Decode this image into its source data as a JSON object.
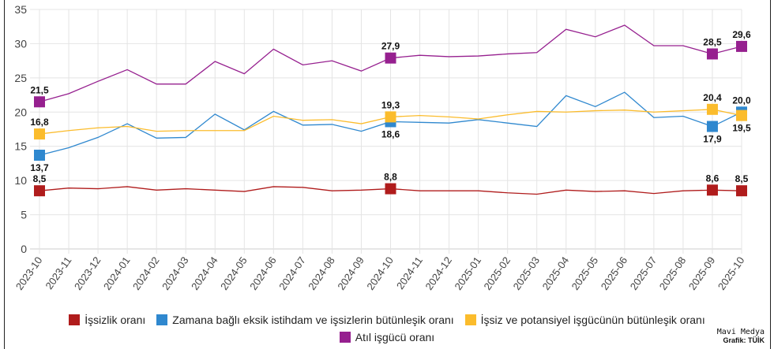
{
  "chart_data": {
    "type": "line",
    "categories": [
      "2023-10",
      "2023-11",
      "2023-12",
      "2024-01",
      "2024-02",
      "2024-03",
      "2024-04",
      "2024-05",
      "2024-06",
      "2024-07",
      "2024-08",
      "2024-09",
      "2024-10",
      "2024-11",
      "2024-12",
      "2025-01",
      "2025-02",
      "2025-03",
      "2025-04",
      "2025-05",
      "2025-06",
      "2025-07",
      "2025-08",
      "2025-09",
      "2025-10"
    ],
    "ylim": [
      0,
      35
    ],
    "yticks": [
      0,
      5,
      10,
      15,
      20,
      25,
      30,
      35
    ],
    "grid": true,
    "legend_placement": "bottom",
    "labeled_points": [
      0,
      12,
      23,
      24
    ],
    "series": [
      {
        "name": "İşsizlik oranı",
        "color": "#b01c1c",
        "label_pos": [
          "above",
          "above",
          "above",
          "above"
        ],
        "values": [
          8.5,
          8.9,
          8.8,
          9.1,
          8.6,
          8.8,
          8.6,
          8.4,
          9.1,
          9.0,
          8.5,
          8.6,
          8.8,
          8.5,
          8.5,
          8.5,
          8.2,
          8.0,
          8.6,
          8.4,
          8.5,
          8.1,
          8.5,
          8.6,
          8.5
        ]
      },
      {
        "name": "Zamana bağlı eksik istihdam ve işsizlerin bütünleşik oranı",
        "color": "#2f88cf",
        "label_pos": [
          "below",
          "below",
          "below",
          "above"
        ],
        "values": [
          13.7,
          14.8,
          16.3,
          18.3,
          16.2,
          16.3,
          19.7,
          17.4,
          20.1,
          18.1,
          18.2,
          17.2,
          18.6,
          18.5,
          18.4,
          18.9,
          18.4,
          17.9,
          22.4,
          20.8,
          22.9,
          19.2,
          19.4,
          17.9,
          20.0
        ]
      },
      {
        "name": "İşsiz ve potansiyel işgücünün bütünleşik oranı",
        "color": "#fbbc2c",
        "label_pos": [
          "above",
          "above",
          "above",
          "below"
        ],
        "values": [
          16.8,
          17.3,
          17.7,
          17.9,
          17.2,
          17.3,
          17.3,
          17.3,
          19.4,
          18.8,
          18.9,
          18.3,
          19.3,
          19.5,
          19.3,
          19.0,
          19.6,
          20.1,
          20.0,
          20.2,
          20.3,
          20.0,
          20.2,
          20.4,
          19.5
        ]
      },
      {
        "name": "Atıl işgücü oranı",
        "color": "#96208f",
        "label_pos": [
          "above",
          "above",
          "above",
          "above"
        ],
        "values": [
          21.5,
          22.7,
          24.5,
          26.2,
          24.1,
          24.1,
          27.4,
          25.6,
          29.2,
          26.9,
          27.5,
          26.0,
          27.9,
          28.3,
          28.1,
          28.2,
          28.5,
          28.7,
          32.1,
          31.0,
          32.7,
          29.7,
          29.7,
          28.5,
          29.6
        ]
      }
    ]
  },
  "credits": {
    "publisher": "Mavi Medya",
    "source": "Grafik: TÜİK"
  }
}
